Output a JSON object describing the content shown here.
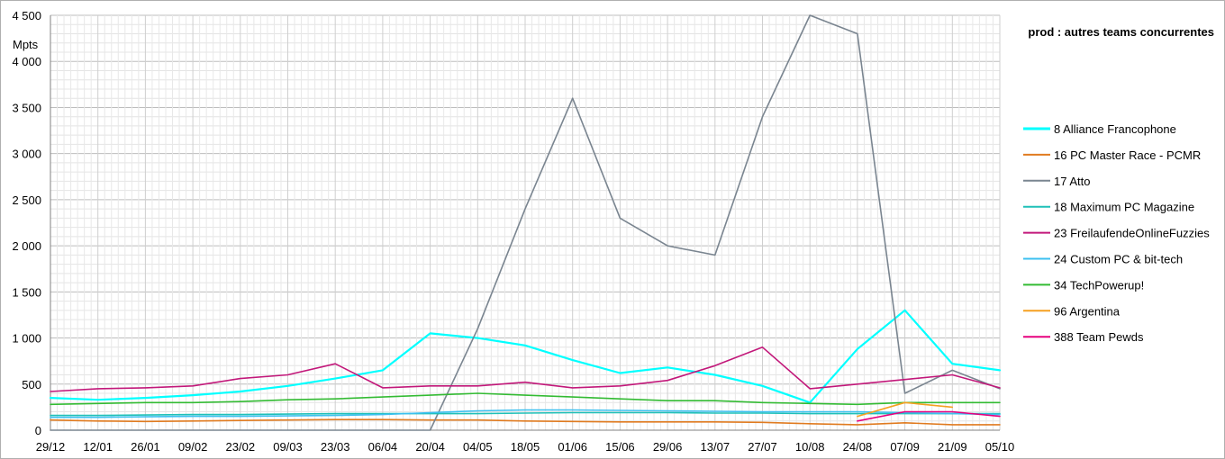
{
  "chart_data": {
    "type": "line",
    "title": "prod : autres teams concurrentes",
    "ylabel": "Mpts",
    "xlabel": "",
    "ylim": [
      0,
      4500
    ],
    "yticks": [
      0,
      500,
      1000,
      1500,
      2000,
      2500,
      3000,
      3500,
      4000,
      4500
    ],
    "ytick_labels": [
      "0",
      "500",
      "1 000",
      "1 500",
      "2 000",
      "2 500",
      "3 000",
      "3 500",
      "4 000",
      "4 500"
    ],
    "x": [
      "29/12",
      "12/01",
      "26/01",
      "09/02",
      "23/02",
      "09/03",
      "23/03",
      "06/04",
      "20/04",
      "04/05",
      "18/05",
      "01/06",
      "15/06",
      "29/06",
      "13/07",
      "27/07",
      "10/08",
      "24/08",
      "07/09",
      "21/09",
      "05/10"
    ],
    "grid": true,
    "legend_position": "right",
    "series": [
      {
        "name": "8 Alliance Francophone",
        "color": "#00ffff",
        "values": [
          350,
          330,
          350,
          380,
          420,
          480,
          560,
          650,
          1050,
          1000,
          920,
          760,
          620,
          680,
          600,
          480,
          300,
          880,
          1300,
          720,
          650
        ]
      },
      {
        "name": "16 PC Master Race - PCMR",
        "color": "#e07b20",
        "values": [
          110,
          100,
          95,
          100,
          105,
          110,
          115,
          115,
          110,
          110,
          100,
          95,
          90,
          90,
          90,
          85,
          70,
          60,
          80,
          60,
          60
        ]
      },
      {
        "name": "17 Atto",
        "color": "#7a8590",
        "values": [
          0,
          0,
          0,
          0,
          0,
          0,
          0,
          0,
          0,
          1100,
          2400,
          3600,
          2300,
          2000,
          1900,
          3400,
          4600,
          4300,
          400,
          650,
          450
        ]
      },
      {
        "name": "18 Maximum PC Magazine",
        "color": "#1fc0b8",
        "values": [
          160,
          160,
          165,
          170,
          170,
          175,
          180,
          180,
          180,
          180,
          185,
          190,
          190,
          190,
          185,
          185,
          180,
          180,
          180,
          180,
          180
        ]
      },
      {
        "name": "23 FreilaufendeOnlineFuzzies",
        "color": "#c2187a",
        "values": [
          420,
          450,
          460,
          480,
          560,
          600,
          720,
          460,
          480,
          480,
          520,
          460,
          480,
          540,
          700,
          900,
          450,
          500,
          550,
          600,
          460
        ]
      },
      {
        "name": "24 Custom PC & bit-tech",
        "color": "#3cc0f0",
        "values": [
          140,
          140,
          145,
          150,
          150,
          155,
          160,
          170,
          190,
          210,
          220,
          220,
          215,
          210,
          205,
          200,
          200,
          200,
          190,
          180,
          170
        ]
      },
      {
        "name": "34 TechPowerup!",
        "color": "#33bb33",
        "values": [
          280,
          290,
          300,
          300,
          310,
          330,
          340,
          360,
          380,
          400,
          380,
          360,
          340,
          320,
          320,
          300,
          290,
          280,
          300,
          300,
          300
        ]
      },
      {
        "name": "96 Argentina",
        "color": "#f5a020",
        "values": [
          null,
          null,
          null,
          null,
          null,
          null,
          null,
          null,
          null,
          null,
          null,
          null,
          null,
          null,
          null,
          null,
          null,
          150,
          300,
          250,
          null
        ]
      },
      {
        "name": "388 Team Pewds",
        "color": "#e6007e",
        "values": [
          null,
          null,
          null,
          null,
          null,
          null,
          null,
          null,
          null,
          null,
          null,
          null,
          null,
          null,
          null,
          null,
          null,
          100,
          200,
          200,
          150
        ]
      }
    ]
  }
}
